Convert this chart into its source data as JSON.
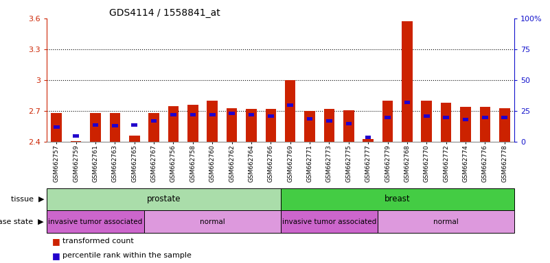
{
  "title": "GDS4114 / 1558841_at",
  "samples": [
    "GSM662757",
    "GSM662759",
    "GSM662761",
    "GSM662763",
    "GSM662765",
    "GSM662767",
    "GSM662756",
    "GSM662758",
    "GSM662760",
    "GSM662762",
    "GSM662764",
    "GSM662766",
    "GSM662769",
    "GSM662771",
    "GSM662773",
    "GSM662775",
    "GSM662777",
    "GSM662779",
    "GSM662768",
    "GSM662770",
    "GSM662772",
    "GSM662774",
    "GSM662776",
    "GSM662778"
  ],
  "red_values": [
    2.68,
    2.41,
    2.68,
    2.68,
    2.46,
    2.68,
    2.75,
    2.76,
    2.8,
    2.73,
    2.72,
    2.72,
    3.0,
    2.7,
    2.72,
    2.71,
    2.43,
    2.8,
    3.57,
    2.8,
    2.78,
    2.74,
    2.74,
    2.73
  ],
  "blue_pcts": [
    12,
    5,
    14,
    13,
    14,
    17,
    22,
    22,
    22,
    23,
    22,
    21,
    30,
    19,
    17,
    15,
    4,
    20,
    32,
    21,
    20,
    18,
    20,
    20
  ],
  "ymin": 2.4,
  "ymax": 3.6,
  "yticks": [
    2.4,
    2.7,
    3.0,
    3.3,
    3.6
  ],
  "ytick_labels": [
    "2.4",
    "2.7",
    "3",
    "3.3",
    "3.6"
  ],
  "right_yticks_pct": [
    0,
    25,
    50,
    75,
    100
  ],
  "right_ytick_labels": [
    "0",
    "25",
    "50",
    "75",
    "100%"
  ],
  "grid_values": [
    2.7,
    3.0,
    3.3
  ],
  "tissue_groups": [
    {
      "label": "prostate",
      "start": 0,
      "end": 12,
      "color": "#aaddaa"
    },
    {
      "label": "breast",
      "start": 12,
      "end": 24,
      "color": "#44cc44"
    }
  ],
  "disease_groups": [
    {
      "label": "invasive tumor associated",
      "start": 0,
      "end": 5,
      "color": "#cc66cc"
    },
    {
      "label": "normal",
      "start": 5,
      "end": 12,
      "color": "#dd99dd"
    },
    {
      "label": "invasive tumor associated",
      "start": 12,
      "end": 17,
      "color": "#cc66cc"
    },
    {
      "label": "normal",
      "start": 17,
      "end": 24,
      "color": "#dd99dd"
    }
  ],
  "bar_color": "#cc2200",
  "blue_color": "#2200cc",
  "left_axis_color": "#cc2200",
  "right_axis_color": "#1111cc",
  "bg_color": "#ffffff",
  "bar_width": 0.55
}
